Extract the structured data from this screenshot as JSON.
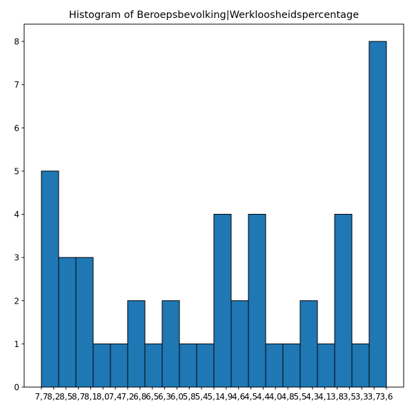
{
  "chart_data": {
    "type": "histogram",
    "title": "Histogram of Beroepsbevolking|Werkloosheidspercentage",
    "bins": [
      0,
      1.4,
      2.8,
      4.2,
      5.6,
      7,
      8.4,
      9.8,
      11.2,
      12.6,
      14,
      15.4,
      16.8,
      18.2,
      19.6,
      21,
      22.4,
      23.8,
      25.2,
      26.6,
      28
    ],
    "values": [
      5,
      3,
      3,
      1,
      1,
      2,
      1,
      2,
      1,
      1,
      4,
      2,
      4,
      1,
      1,
      2,
      1,
      4,
      1,
      8
    ],
    "color": "#1f77b4",
    "edgecolor": "#000000",
    "xlim": [
      -1.4,
      29.4
    ],
    "xticks": [
      {
        "value": 0,
        "label": "7,7"
      },
      {
        "value": 1,
        "label": "8,2"
      },
      {
        "value": 2,
        "label": "8,5"
      },
      {
        "value": 3,
        "label": "8,7"
      },
      {
        "value": 4,
        "label": "8,1"
      },
      {
        "value": 5,
        "label": "8,0"
      },
      {
        "value": 6,
        "label": "7,4"
      },
      {
        "value": 7,
        "label": "7,2"
      },
      {
        "value": 8,
        "label": "6,8"
      },
      {
        "value": 9,
        "label": "6,5"
      },
      {
        "value": 10,
        "label": "6,3"
      },
      {
        "value": 11,
        "label": "6,0"
      },
      {
        "value": 12,
        "label": "5,8"
      },
      {
        "value": 13,
        "label": "5,4"
      },
      {
        "value": 14,
        "label": "5,1"
      },
      {
        "value": 15,
        "label": "4,9"
      },
      {
        "value": 16,
        "label": "4,6"
      },
      {
        "value": 17,
        "label": "4,5"
      },
      {
        "value": 18,
        "label": "4,4"
      },
      {
        "value": 19,
        "label": "4,0"
      },
      {
        "value": 20,
        "label": "4,8"
      },
      {
        "value": 21,
        "label": "5,5"
      },
      {
        "value": 22,
        "label": "4,3"
      },
      {
        "value": 23,
        "label": "4,1"
      },
      {
        "value": 24,
        "label": "3,8"
      },
      {
        "value": 25,
        "label": "3,5"
      },
      {
        "value": 26,
        "label": "3,3"
      },
      {
        "value": 27,
        "label": "3,7"
      },
      {
        "value": 28,
        "label": "3,6"
      }
    ],
    "ylim": [
      0,
      8.4
    ],
    "yticks": [
      0,
      1,
      2,
      3,
      4,
      5,
      6,
      7,
      8
    ]
  }
}
